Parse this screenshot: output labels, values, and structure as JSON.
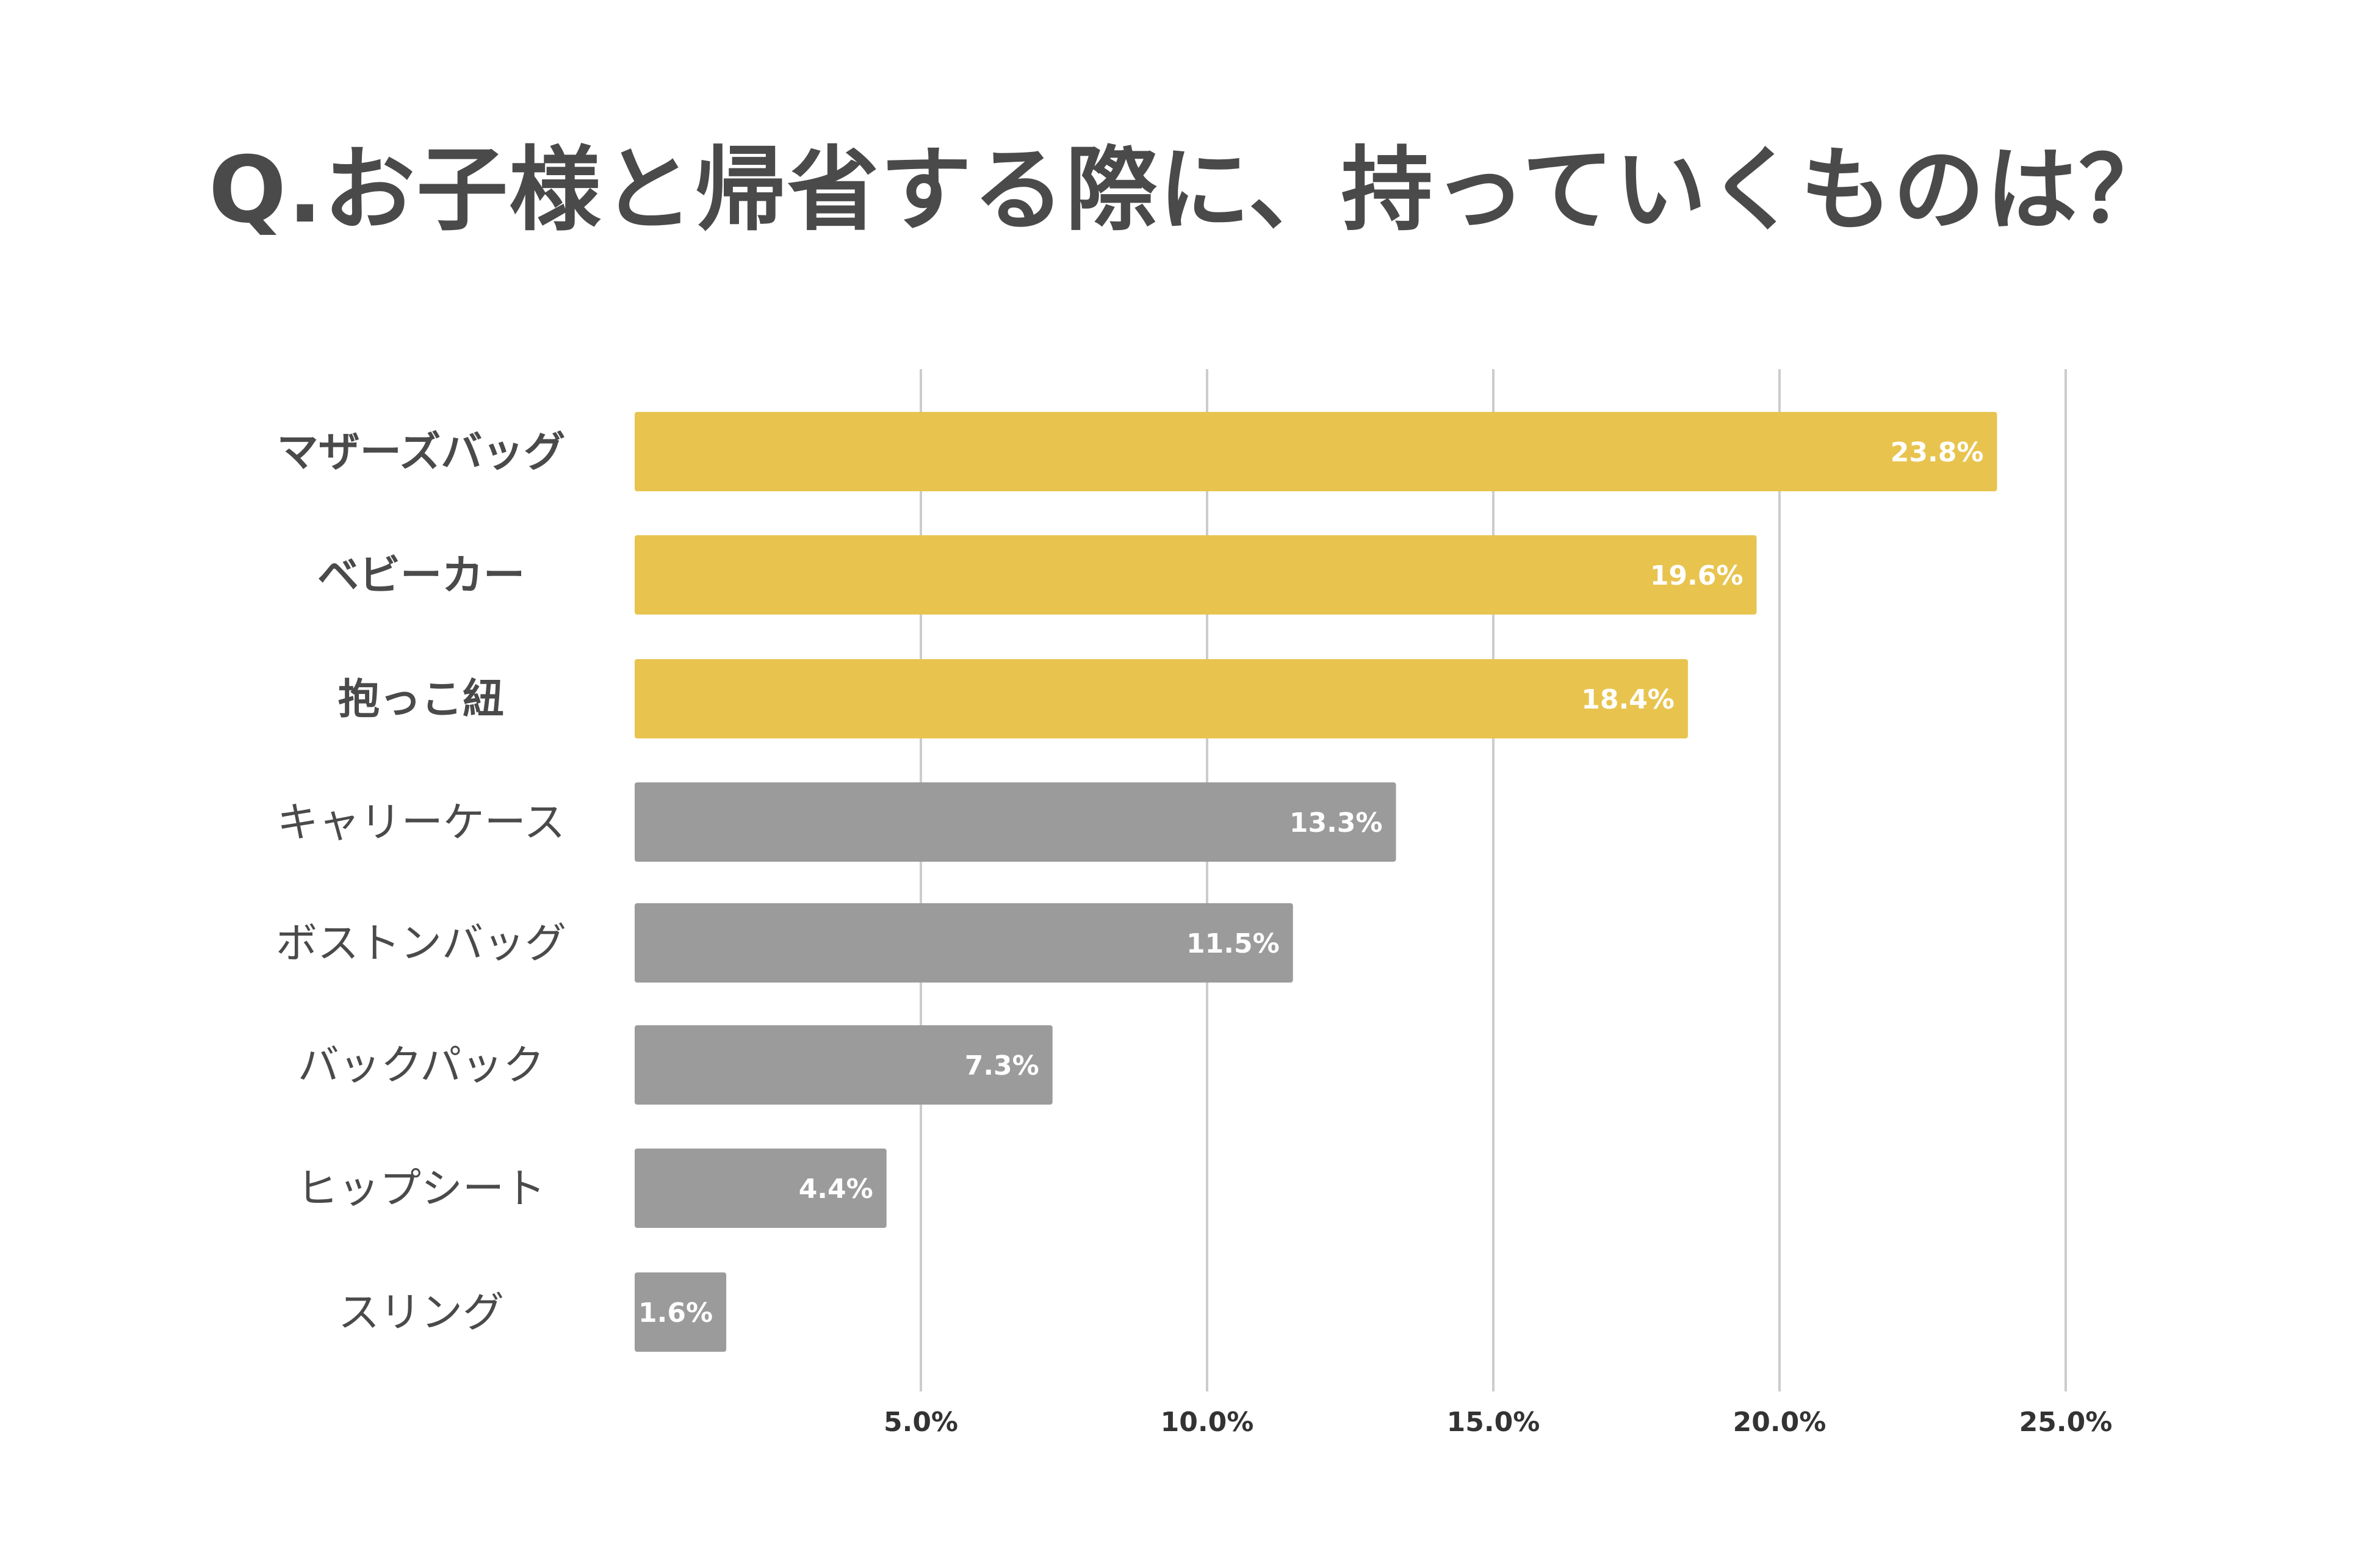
{
  "chart_data": {
    "type": "bar",
    "orientation": "horizontal",
    "title": "Q.お子様と帰省する際に、持っていくものは？",
    "categories": [
      "マザーズバッグ",
      "ベビーカー",
      "抱っこ紐",
      "キャリーケース",
      "ボストンバッグ",
      "バックパック",
      "ヒップシート",
      "スリング"
    ],
    "values": [
      23.8,
      19.6,
      18.4,
      13.3,
      11.5,
      7.3,
      4.4,
      1.6
    ],
    "value_labels": [
      "23.8%",
      "19.6%",
      "18.4%",
      "13.3%",
      "11.5%",
      "7.3%",
      "4.4%",
      "1.6%"
    ],
    "highlight": [
      true,
      true,
      true,
      false,
      false,
      false,
      false,
      false
    ],
    "xlim": [
      0,
      25
    ],
    "xticks": [
      5,
      10,
      15,
      20,
      25
    ],
    "xtick_labels": [
      "5.0%",
      "10.0%",
      "15.0%",
      "20.0%",
      "25.0%"
    ],
    "xlabel": "",
    "ylabel": "",
    "grid": true,
    "colors": {
      "highlight": "#E8C44F",
      "default": "#9B9B9B"
    }
  }
}
